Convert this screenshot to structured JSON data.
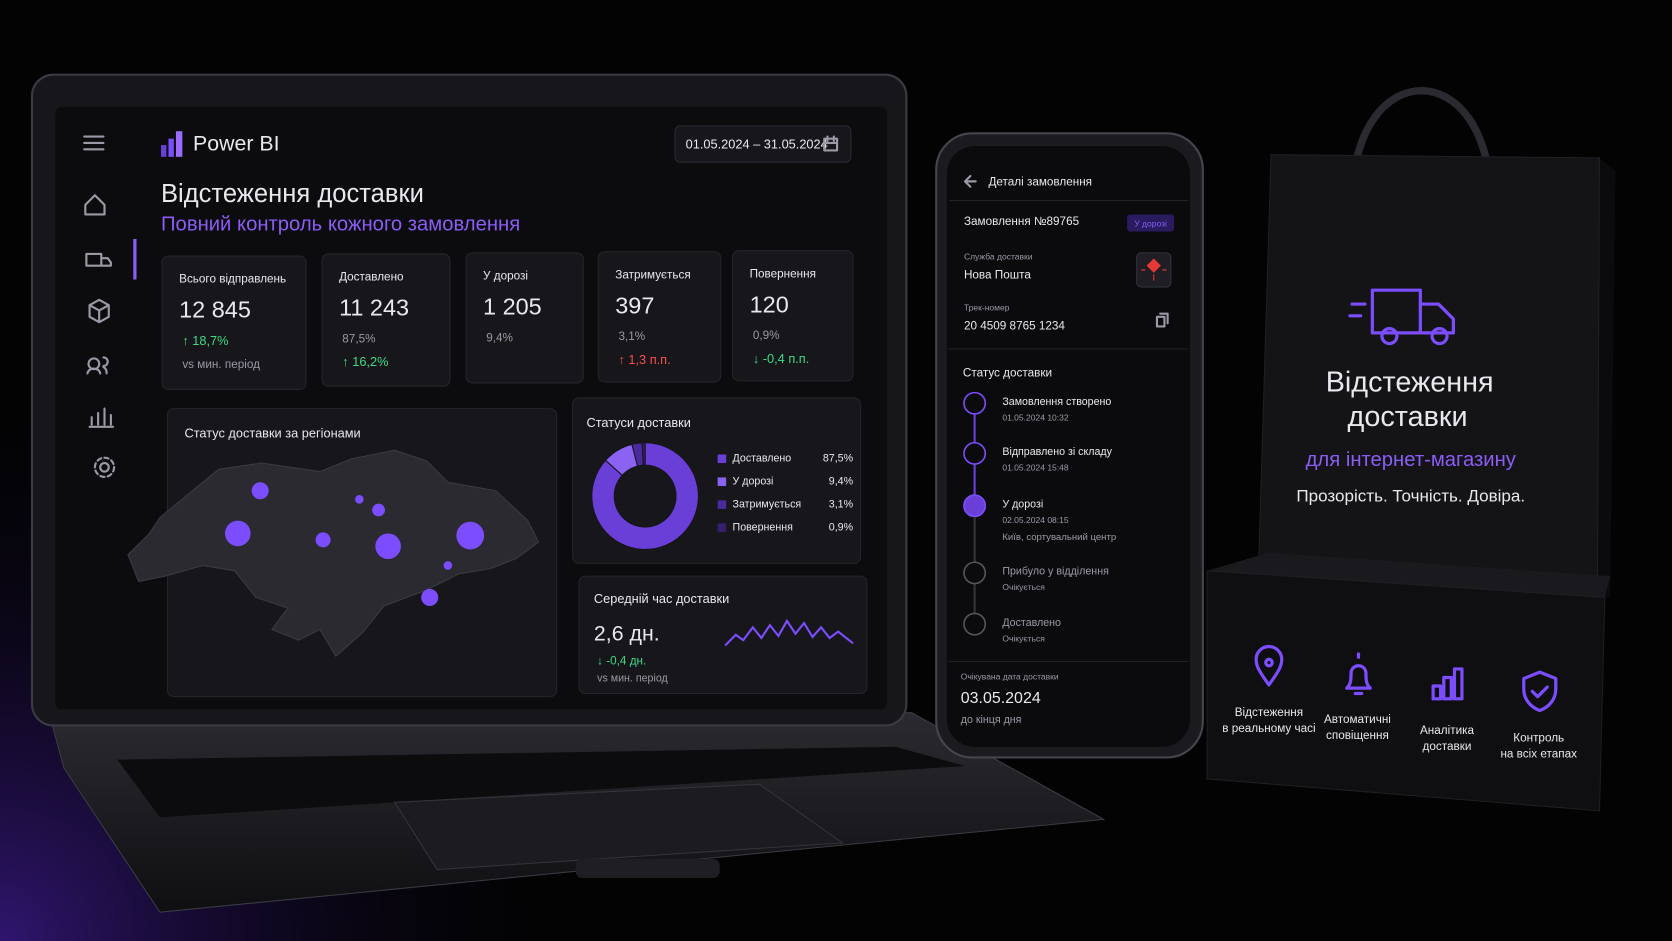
{
  "laptop": {
    "brand": "Power BI",
    "date_range": "01.05.2024 – 31.05.2024",
    "title": "Відстеження доставки",
    "subtitle": "Повний контроль кожного замовлення",
    "kpis": [
      {
        "label": "Всього відправлень",
        "value": "12 845",
        "change": "↑ 18,7%",
        "note": "vs мин. період"
      },
      {
        "label": "Доставлено",
        "value": "11 243",
        "share": "87,5%",
        "change": "↑ 16,2%"
      },
      {
        "label": "У дорозі",
        "value": "1 205",
        "share": "9,4%"
      },
      {
        "label": "Затримується",
        "value": "397",
        "share": "3,1%",
        "change": "↑ 1,3 п.п."
      },
      {
        "label": "Повернення",
        "value": "120",
        "share": "0,9%",
        "change": "↓ -0,4 п.п."
      }
    ],
    "map_title": "Статус доставки за регіонами",
    "avg_time": {
      "title": "Середній час доставки",
      "value": "2,6 дн.",
      "change": "↓ -0,4 дн.",
      "note": "vs мин. період"
    }
  },
  "chart_data": {
    "type": "pie",
    "donut": true,
    "title": "Статуси доставки",
    "categories": [
      "Доставлено",
      "У дорозі",
      "Затримується",
      "Повернення"
    ],
    "values": [
      87.5,
      9.4,
      3.1,
      0.9
    ],
    "value_labels": [
      "87,5%",
      "9,4%",
      "3,1%",
      "0,9%"
    ],
    "colors": [
      "#6a3fd8",
      "#8b62f2",
      "#4a2a9c",
      "#35206e"
    ]
  },
  "phone": {
    "header": "Деталі замовлення",
    "order": "Замовлення №89765",
    "badge": "У дорозі",
    "carrier_label": "Служба доставки",
    "carrier": "Нова Пошта",
    "track_label": "Трек-номер",
    "track": "20 4509 8765 1234",
    "status_title": "Статус доставки",
    "steps": [
      {
        "title": "Замовлення створено",
        "time": "01.05.2024 10:32"
      },
      {
        "title": "Відправлено зі складу",
        "time": "01.05.2024 15:48"
      },
      {
        "title": "У дорозі",
        "time": "02.05.2024 08:15",
        "place": "Київ, сортувальний центр"
      },
      {
        "title": "Прибуло у відділення",
        "time": "Очікується"
      },
      {
        "title": "Доставлено",
        "time": "Очікується"
      }
    ],
    "eta_label": "Очікувана дата доставки",
    "eta": "03.05.2024",
    "eta_note": "до кінця дня"
  },
  "bag": {
    "title": [
      "Відстеження",
      "доставки"
    ],
    "subtitle": "для інтернет-магазину",
    "tagline": "Прозорість. Точність. Довіра.",
    "features": [
      [
        "Відстеження",
        "в реальному часі"
      ],
      [
        "Автоматичні",
        "сповіщення"
      ],
      [
        "Аналітика",
        "доставки"
      ],
      [
        "Контроль",
        "на всіх етапах"
      ]
    ]
  }
}
